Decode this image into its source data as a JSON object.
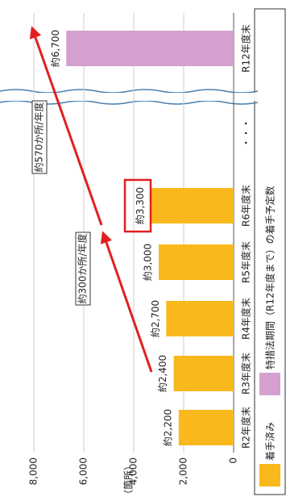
{
  "chart_data": {
    "type": "bar",
    "ylabel": "（箇所）",
    "categories": [
      "R2年度末",
      "R3年度末",
      "R4年度末",
      "R5年度末",
      "R6年度末",
      "・・・",
      "R12年度末"
    ],
    "series": [
      {
        "name": "着手済み",
        "color": "#f9b81b",
        "values": [
          2200,
          2400,
          2700,
          3000,
          3300,
          null,
          null
        ],
        "value_labels": [
          "約2,200",
          "約2,400",
          "約2,700",
          "約3,000",
          "約3,300",
          null,
          null
        ]
      },
      {
        "name": "特措法期間（R12年度まで）の着手予定数",
        "color": "#d59fcf",
        "values": [
          null,
          null,
          null,
          null,
          null,
          null,
          6700
        ],
        "value_labels": [
          null,
          null,
          null,
          null,
          null,
          null,
          "約6,700"
        ]
      }
    ],
    "ylim": [
      0,
      8000
    ],
    "yticks": [
      0,
      {
        "value": 2000,
        "label": "2,000"
      },
      {
        "value": 4000,
        "label": "4,000"
      },
      {
        "value": 6000,
        "label": "6,000"
      },
      {
        "value": 8000,
        "label": "8,000"
      }
    ],
    "grid": true,
    "annotations": [
      "約300か所/年度",
      "約570か所/年度"
    ]
  }
}
